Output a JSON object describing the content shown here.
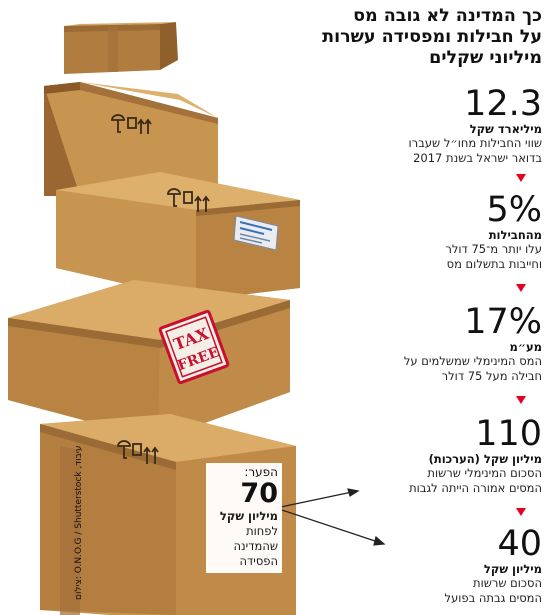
{
  "title_lines": [
    "כך המדינה לא גובה מס",
    "על חבילות ומפסידה עשרות",
    "מיליוני שקלים"
  ],
  "stats": [
    {
      "value": "12.3",
      "unit": "מיליארד שקל",
      "desc": [
        "שווי החבילות מחו״ל שעברו",
        "בדואר ישראל בשנת 2017"
      ]
    },
    {
      "value": "5%",
      "unit": "מהחבילות",
      "desc": [
        "עלו יותר מ־75 דולר",
        "וחייבות בתשלום מס"
      ]
    },
    {
      "value": "17%",
      "unit": "מע״מ",
      "desc": [
        "המס המינימלי שמשלמים על",
        "חבילה מעל 75 דולר"
      ]
    },
    {
      "value": "110",
      "unit": "מיליון שקל (הערכות)",
      "desc": [
        "הסכום המינימלי שרשות",
        "המסים אמורה הייתה לגבות"
      ]
    },
    {
      "value": "40",
      "unit": "מיליון שקל",
      "desc": [
        "הסכום שרשות",
        "המסים גבתה בפועל"
      ]
    }
  ],
  "gap": {
    "label": "הפער:",
    "value": "70",
    "unit": "מיליון שקל",
    "text": [
      "לפחות",
      "שהמדינה",
      "הפסידה"
    ]
  },
  "stamp": {
    "line1": "TAX",
    "line2": "FREE"
  },
  "credit": "צילום: O.N.O.G / Shutterstock ,עיבוד",
  "colors": {
    "accent": "#e2001a",
    "box": "#c8924e",
    "box_dark": "#9a6632",
    "tape": "#a4713a",
    "stamp": "#c8102e"
  }
}
